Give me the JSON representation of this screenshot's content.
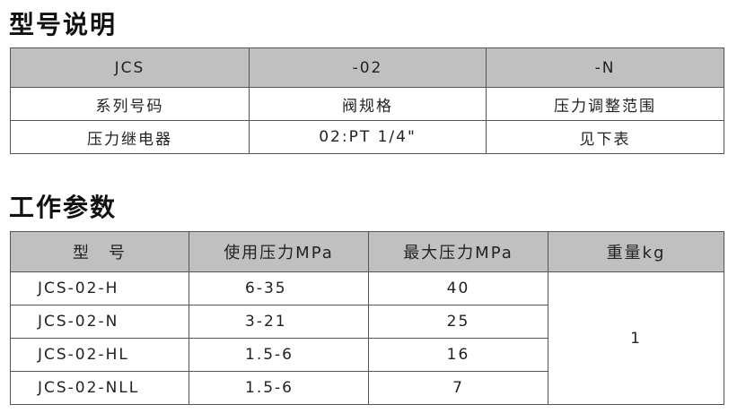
{
  "model_section": {
    "title": "型号说明",
    "header": [
      "JCS",
      "-02",
      "-N"
    ],
    "rows": [
      [
        "系列号码",
        "阀规格",
        "压力调整范围"
      ],
      [
        "压力继电器",
        "02:PT 1/4\"",
        "见下表"
      ]
    ]
  },
  "params_section": {
    "title": "工作参数",
    "header": [
      "型　号",
      "使用压力MPa",
      "最大压力MPa",
      "重量kg"
    ],
    "rows": [
      {
        "model": "JCS-02-H",
        "working_pressure": "6-35",
        "max_pressure": "40"
      },
      {
        "model": "JCS-02-N",
        "working_pressure": "3-21",
        "max_pressure": "25"
      },
      {
        "model": "JCS-02-HL",
        "working_pressure": "1.5-6",
        "max_pressure": "16"
      },
      {
        "model": "JCS-02-NLL",
        "working_pressure": "1.5-6",
        "max_pressure": "7"
      }
    ],
    "weight": "1"
  },
  "colors": {
    "header_bg": "#c0c0c0",
    "border": "#555555"
  }
}
